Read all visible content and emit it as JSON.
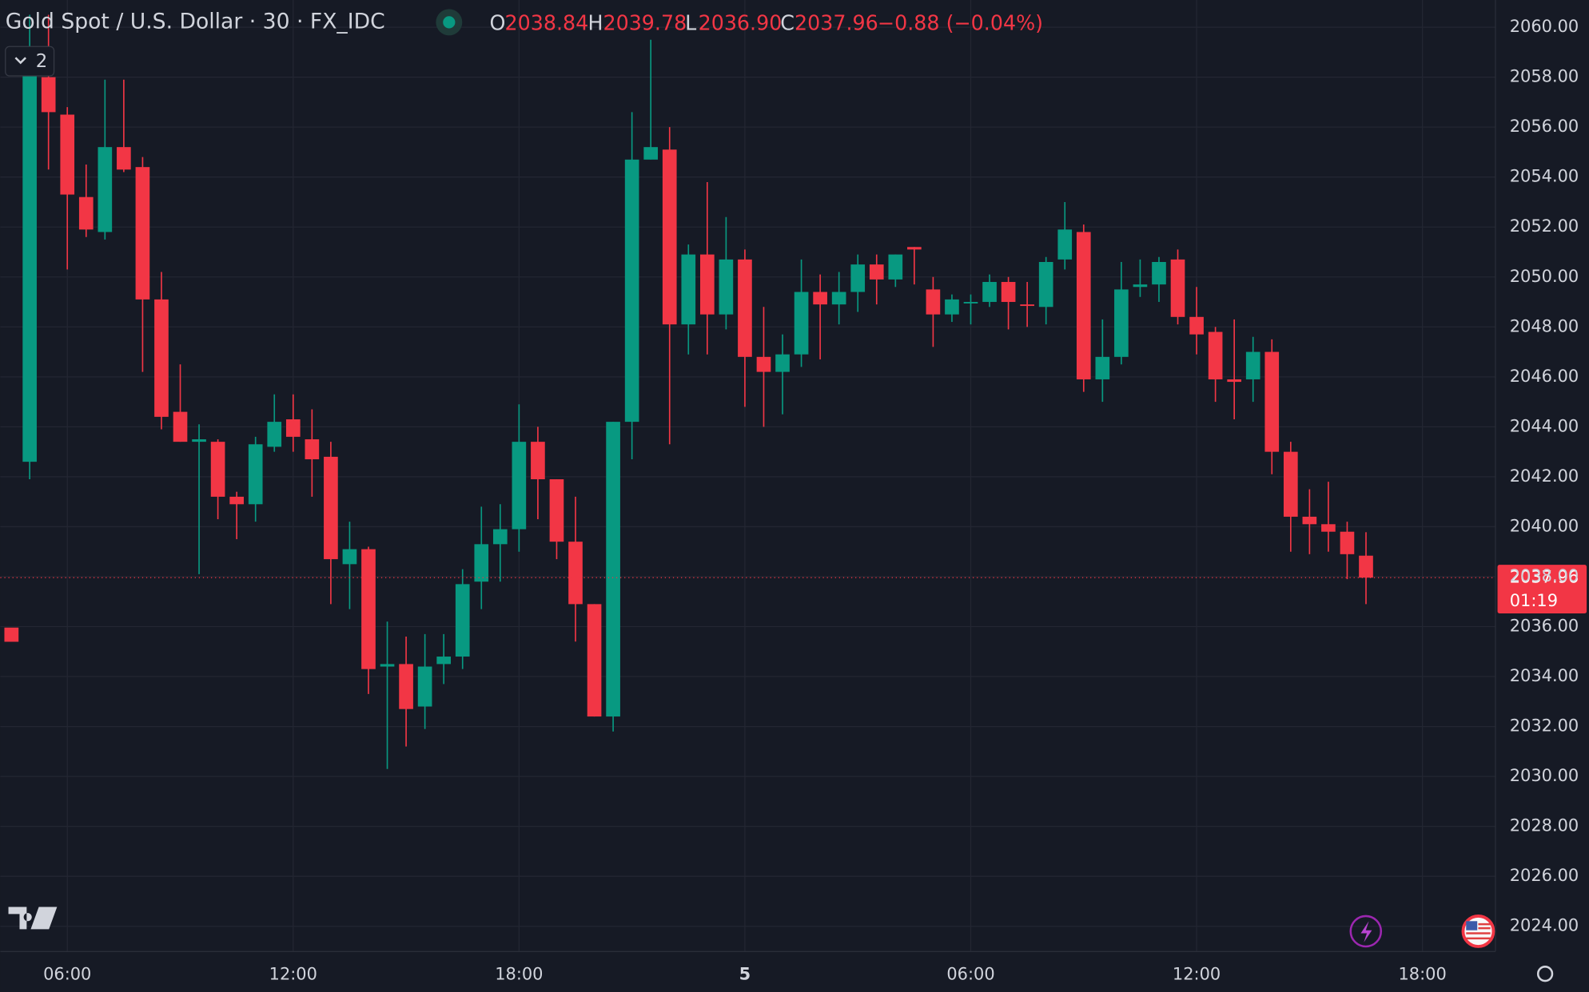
{
  "chart_data": {
    "type": "candlestick",
    "title": "Gold Spot / U.S. Dollar · 30 · FX_IDC",
    "indicator_count": "2",
    "legend": {
      "open_label": "O",
      "open": "2038.84",
      "high_label": "H",
      "high": "2039.78",
      "low_label": "L",
      "low": "2036.90",
      "close_label": "C",
      "close": "2037.96",
      "change": "−0.88 (−0.04%)"
    },
    "price_label": "2037.96",
    "countdown": "01:19",
    "up_color": "#089981",
    "down_color": "#f23645",
    "open": [
      2042.6,
      2058.0,
      2056.5,
      2053.2,
      2051.8,
      2055.2,
      2054.4,
      2049.1,
      2044.6,
      2043.4,
      2043.4,
      2041.2,
      2040.9,
      2043.2,
      2044.3,
      2043.5,
      2042.8,
      2038.5,
      2039.1,
      2034.4,
      2034.5,
      2032.8,
      2034.5,
      2034.8,
      2037.8,
      2039.3,
      2039.9,
      2043.4,
      2041.9,
      2039.4,
      2036.9,
      2032.4,
      2044.2,
      2054.7,
      2055.1,
      2048.1,
      2050.9,
      2048.5,
      2050.7,
      2046.8,
      2046.2,
      2046.9,
      2049.4,
      2048.9,
      2049.4,
      2050.5,
      2049.9,
      2051.2,
      2049.5,
      2048.5,
      2049.0,
      2049.0,
      2049.8,
      2048.9,
      2048.8,
      2050.7,
      2051.8,
      2045.9,
      2046.8,
      2049.6,
      2049.7,
      2050.7,
      2048.4,
      2047.8,
      2045.9,
      2045.9,
      2047.0,
      2043.0,
      2040.4,
      2040.1,
      2039.8,
      2038.84
    ],
    "high": [
      2060.5,
      2060.5,
      2056.8,
      2054.5,
      2057.9,
      2057.9,
      2054.8,
      2050.2,
      2046.5,
      2044.1,
      2043.5,
      2041.4,
      2043.6,
      2045.3,
      2045.3,
      2044.7,
      2043.4,
      2040.2,
      2039.2,
      2036.2,
      2035.6,
      2035.7,
      2035.7,
      2038.3,
      2040.8,
      2040.9,
      2044.9,
      2044.0,
      2041.9,
      2041.2,
      2036.9,
      2044.2,
      2056.6,
      2059.5,
      2056.0,
      2051.3,
      2053.8,
      2052.4,
      2051.1,
      2048.8,
      2047.7,
      2050.7,
      2050.1,
      2050.2,
      2050.9,
      2050.9,
      2050.9,
      2051.2,
      2050.0,
      2049.3,
      2049.3,
      2050.1,
      2050.0,
      2049.8,
      2050.8,
      2053.0,
      2052.1,
      2048.3,
      2050.6,
      2050.7,
      2050.8,
      2051.1,
      2049.6,
      2048.0,
      2048.3,
      2047.6,
      2047.5,
      2043.4,
      2041.5,
      2041.8,
      2040.2,
      2039.78
    ],
    "low": [
      2041.9,
      2054.3,
      2050.3,
      2051.6,
      2051.5,
      2054.2,
      2046.2,
      2043.9,
      2043.4,
      2038.1,
      2040.3,
      2039.5,
      2040.2,
      2043.0,
      2043.0,
      2041.2,
      2036.9,
      2036.7,
      2033.3,
      2030.3,
      2031.2,
      2031.9,
      2033.7,
      2034.3,
      2036.7,
      2037.8,
      2039.0,
      2040.3,
      2038.7,
      2035.4,
      2032.4,
      2031.8,
      2042.7,
      2054.7,
      2043.3,
      2046.9,
      2046.9,
      2047.9,
      2044.8,
      2044.0,
      2044.5,
      2046.4,
      2046.7,
      2048.1,
      2048.6,
      2048.9,
      2049.6,
      2049.7,
      2047.2,
      2048.2,
      2048.1,
      2048.8,
      2047.9,
      2048.0,
      2048.1,
      2050.3,
      2045.4,
      2045.0,
      2046.5,
      2049.2,
      2049.0,
      2048.1,
      2046.9,
      2045.0,
      2044.3,
      2045.0,
      2042.1,
      2039.0,
      2038.9,
      2039.0,
      2037.9,
      2036.9
    ],
    "close": [
      2059.0,
      2056.6,
      2053.3,
      2051.9,
      2055.2,
      2054.3,
      2049.1,
      2044.4,
      2043.4,
      2043.5,
      2041.2,
      2040.9,
      2043.3,
      2044.2,
      2043.6,
      2042.7,
      2038.7,
      2039.1,
      2034.3,
      2034.5,
      2032.7,
      2034.4,
      2034.8,
      2037.7,
      2039.3,
      2039.9,
      2043.4,
      2041.9,
      2039.4,
      2036.9,
      2032.4,
      2044.2,
      2054.7,
      2055.2,
      2048.1,
      2050.9,
      2048.5,
      2050.7,
      2046.8,
      2046.2,
      2046.9,
      2049.4,
      2048.9,
      2049.4,
      2050.5,
      2049.9,
      2050.9,
      2051.1,
      2048.5,
      2049.1,
      2049.0,
      2049.8,
      2049.0,
      2048.85,
      2050.6,
      2051.9,
      2045.9,
      2046.8,
      2049.5,
      2049.7,
      2050.6,
      2048.4,
      2047.7,
      2045.9,
      2045.8,
      2047.0,
      2043.0,
      2040.4,
      2040.1,
      2039.8,
      2038.9,
      2037.96
    ],
    "xlim": [
      -1.56,
      77.88
    ],
    "xticks": [
      {
        "value": 2,
        "label": "06:00"
      },
      {
        "value": 14,
        "label": "12:00"
      },
      {
        "value": 26,
        "label": "18:00"
      },
      {
        "value": 38,
        "label": "5"
      },
      {
        "value": 50,
        "label": "06:00"
      },
      {
        "value": 62,
        "label": "12:00"
      },
      {
        "value": 74,
        "label": "18:00"
      }
    ],
    "ylim": [
      2022.99,
      2061.09
    ],
    "yticks": [
      {
        "value": 2024,
        "label": "2024.00"
      },
      {
        "value": 2026,
        "label": "2026.00"
      },
      {
        "value": 2028,
        "label": "2028.00"
      },
      {
        "value": 2030,
        "label": "2030.00"
      },
      {
        "value": 2032,
        "label": "2032.00"
      },
      {
        "value": 2034,
        "label": "2034.00"
      },
      {
        "value": 2036,
        "label": "2036.00"
      },
      {
        "value": 2038,
        "label": "2038.00"
      },
      {
        "value": 2040,
        "label": "2040.00"
      },
      {
        "value": 2042,
        "label": "2042.00"
      },
      {
        "value": 2044,
        "label": "2044.00"
      },
      {
        "value": 2046,
        "label": "2046.00"
      },
      {
        "value": 2048,
        "label": "2048.00"
      },
      {
        "value": 2050,
        "label": "2050.00"
      },
      {
        "value": 2052,
        "label": "2052.00"
      },
      {
        "value": 2054,
        "label": "2054.00"
      },
      {
        "value": 2056,
        "label": "2056.00"
      },
      {
        "value": 2058,
        "label": "2058.00"
      },
      {
        "value": 2060,
        "label": "2060.00"
      }
    ],
    "grid": true
  }
}
